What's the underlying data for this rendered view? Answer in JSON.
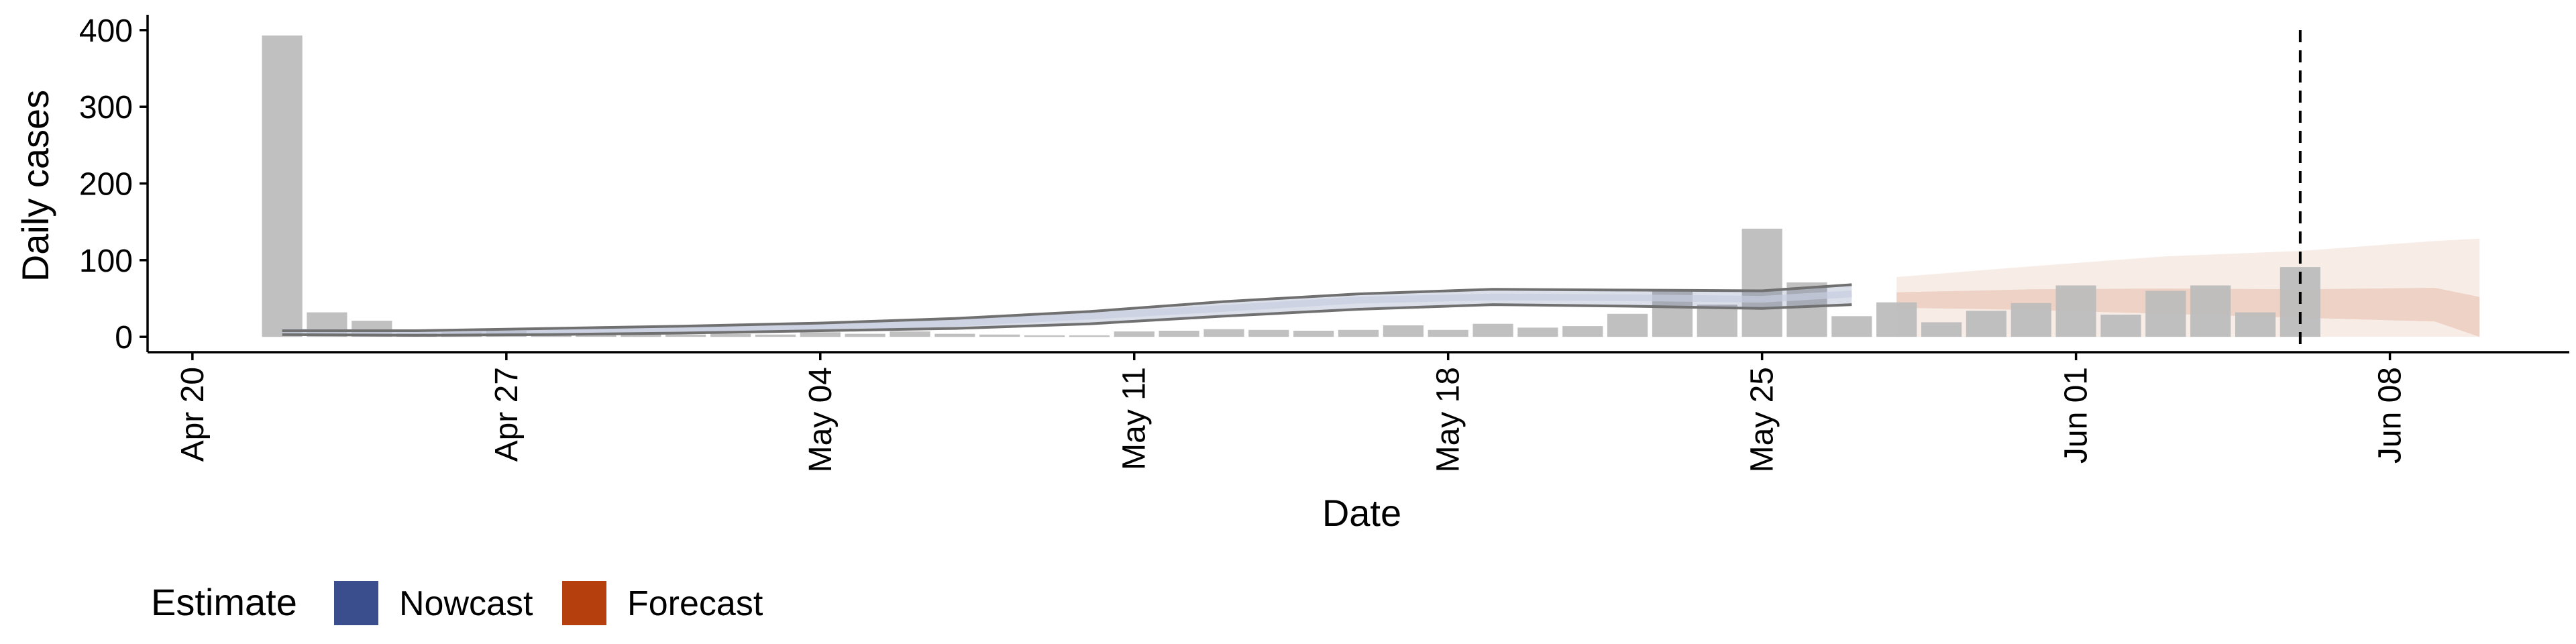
{
  "chart_data": {
    "type": "bar",
    "xlabel": "Date",
    "ylabel": "Daily cases",
    "ylim": [
      -20,
      420
    ],
    "y_ticks": [
      0,
      100,
      200,
      300,
      400
    ],
    "xlim": [
      "2020-04-19",
      "2020-06-12"
    ],
    "x_ticks": [
      {
        "date": "2020-04-20",
        "label": "Apr 20"
      },
      {
        "date": "2020-04-27",
        "label": "Apr 27"
      },
      {
        "date": "2020-05-04",
        "label": "May 04"
      },
      {
        "date": "2020-05-11",
        "label": "May 11"
      },
      {
        "date": "2020-05-18",
        "label": "May 18"
      },
      {
        "date": "2020-05-25",
        "label": "May 25"
      },
      {
        "date": "2020-06-01",
        "label": "Jun 01"
      },
      {
        "date": "2020-06-08",
        "label": "Jun 08"
      }
    ],
    "grid": false,
    "legend": {
      "title": "Estimate",
      "position": "bottom-left",
      "items": [
        {
          "label": "Nowcast",
          "color": "#3A4D8C"
        },
        {
          "label": "Forecast",
          "color": "#B5400E"
        }
      ]
    },
    "reference_line_date": "2020-06-06",
    "bars": {
      "color": "#bdbdbd",
      "x": [
        "2020-04-22",
        "2020-04-23",
        "2020-04-24",
        "2020-04-25",
        "2020-04-26",
        "2020-04-27",
        "2020-04-28",
        "2020-04-29",
        "2020-04-30",
        "2020-05-01",
        "2020-05-02",
        "2020-05-03",
        "2020-05-04",
        "2020-05-05",
        "2020-05-06",
        "2020-05-07",
        "2020-05-08",
        "2020-05-09",
        "2020-05-10",
        "2020-05-11",
        "2020-05-12",
        "2020-05-13",
        "2020-05-14",
        "2020-05-15",
        "2020-05-16",
        "2020-05-17",
        "2020-05-18",
        "2020-05-19",
        "2020-05-20",
        "2020-05-21",
        "2020-05-22",
        "2020-05-23",
        "2020-05-24",
        "2020-05-25",
        "2020-05-26",
        "2020-05-27",
        "2020-05-28",
        "2020-05-29",
        "2020-05-30",
        "2020-05-31",
        "2020-06-01",
        "2020-06-02",
        "2020-06-03",
        "2020-06-04",
        "2020-06-05",
        "2020-06-06"
      ],
      "values": [
        393,
        32,
        21,
        5,
        6,
        8,
        4,
        5,
        4,
        3,
        4,
        3,
        6,
        4,
        7,
        4,
        3,
        2,
        2,
        7,
        8,
        10,
        9,
        8,
        9,
        15,
        9,
        17,
        12,
        14,
        30,
        62,
        42,
        141,
        71,
        27,
        45,
        19,
        34,
        44,
        67,
        29,
        60,
        67,
        32,
        91
      ]
    },
    "nowcast": {
      "color": "#3A4D8C",
      "x": [
        "2020-04-22",
        "2020-04-25",
        "2020-04-28",
        "2020-05-01",
        "2020-05-04",
        "2020-05-07",
        "2020-05-10",
        "2020-05-13",
        "2020-05-16",
        "2020-05-19",
        "2020-05-22",
        "2020-05-25",
        "2020-05-27"
      ],
      "lower": [
        3,
        2,
        3,
        5,
        8,
        11,
        17,
        27,
        36,
        42,
        40,
        37,
        42
      ],
      "median": [
        6,
        5,
        7,
        9,
        12,
        18,
        27,
        37,
        48,
        52,
        51,
        49,
        56
      ],
      "upper": [
        8,
        8,
        11,
        14,
        18,
        24,
        33,
        46,
        56,
        62,
        61,
        60,
        68
      ]
    },
    "forecast": {
      "color": "#B5400E",
      "x": [
        "2020-05-28",
        "2020-05-31",
        "2020-06-03",
        "2020-06-06",
        "2020-06-09",
        "2020-06-10"
      ],
      "outer_lower": [
        0,
        0,
        0,
        0,
        0,
        0
      ],
      "outer_upper": [
        78,
        92,
        105,
        112,
        125,
        128
      ],
      "inner_lower": [
        38,
        35,
        30,
        25,
        20,
        0
      ],
      "inner_upper": [
        58,
        62,
        63,
        62,
        64,
        52
      ]
    }
  }
}
